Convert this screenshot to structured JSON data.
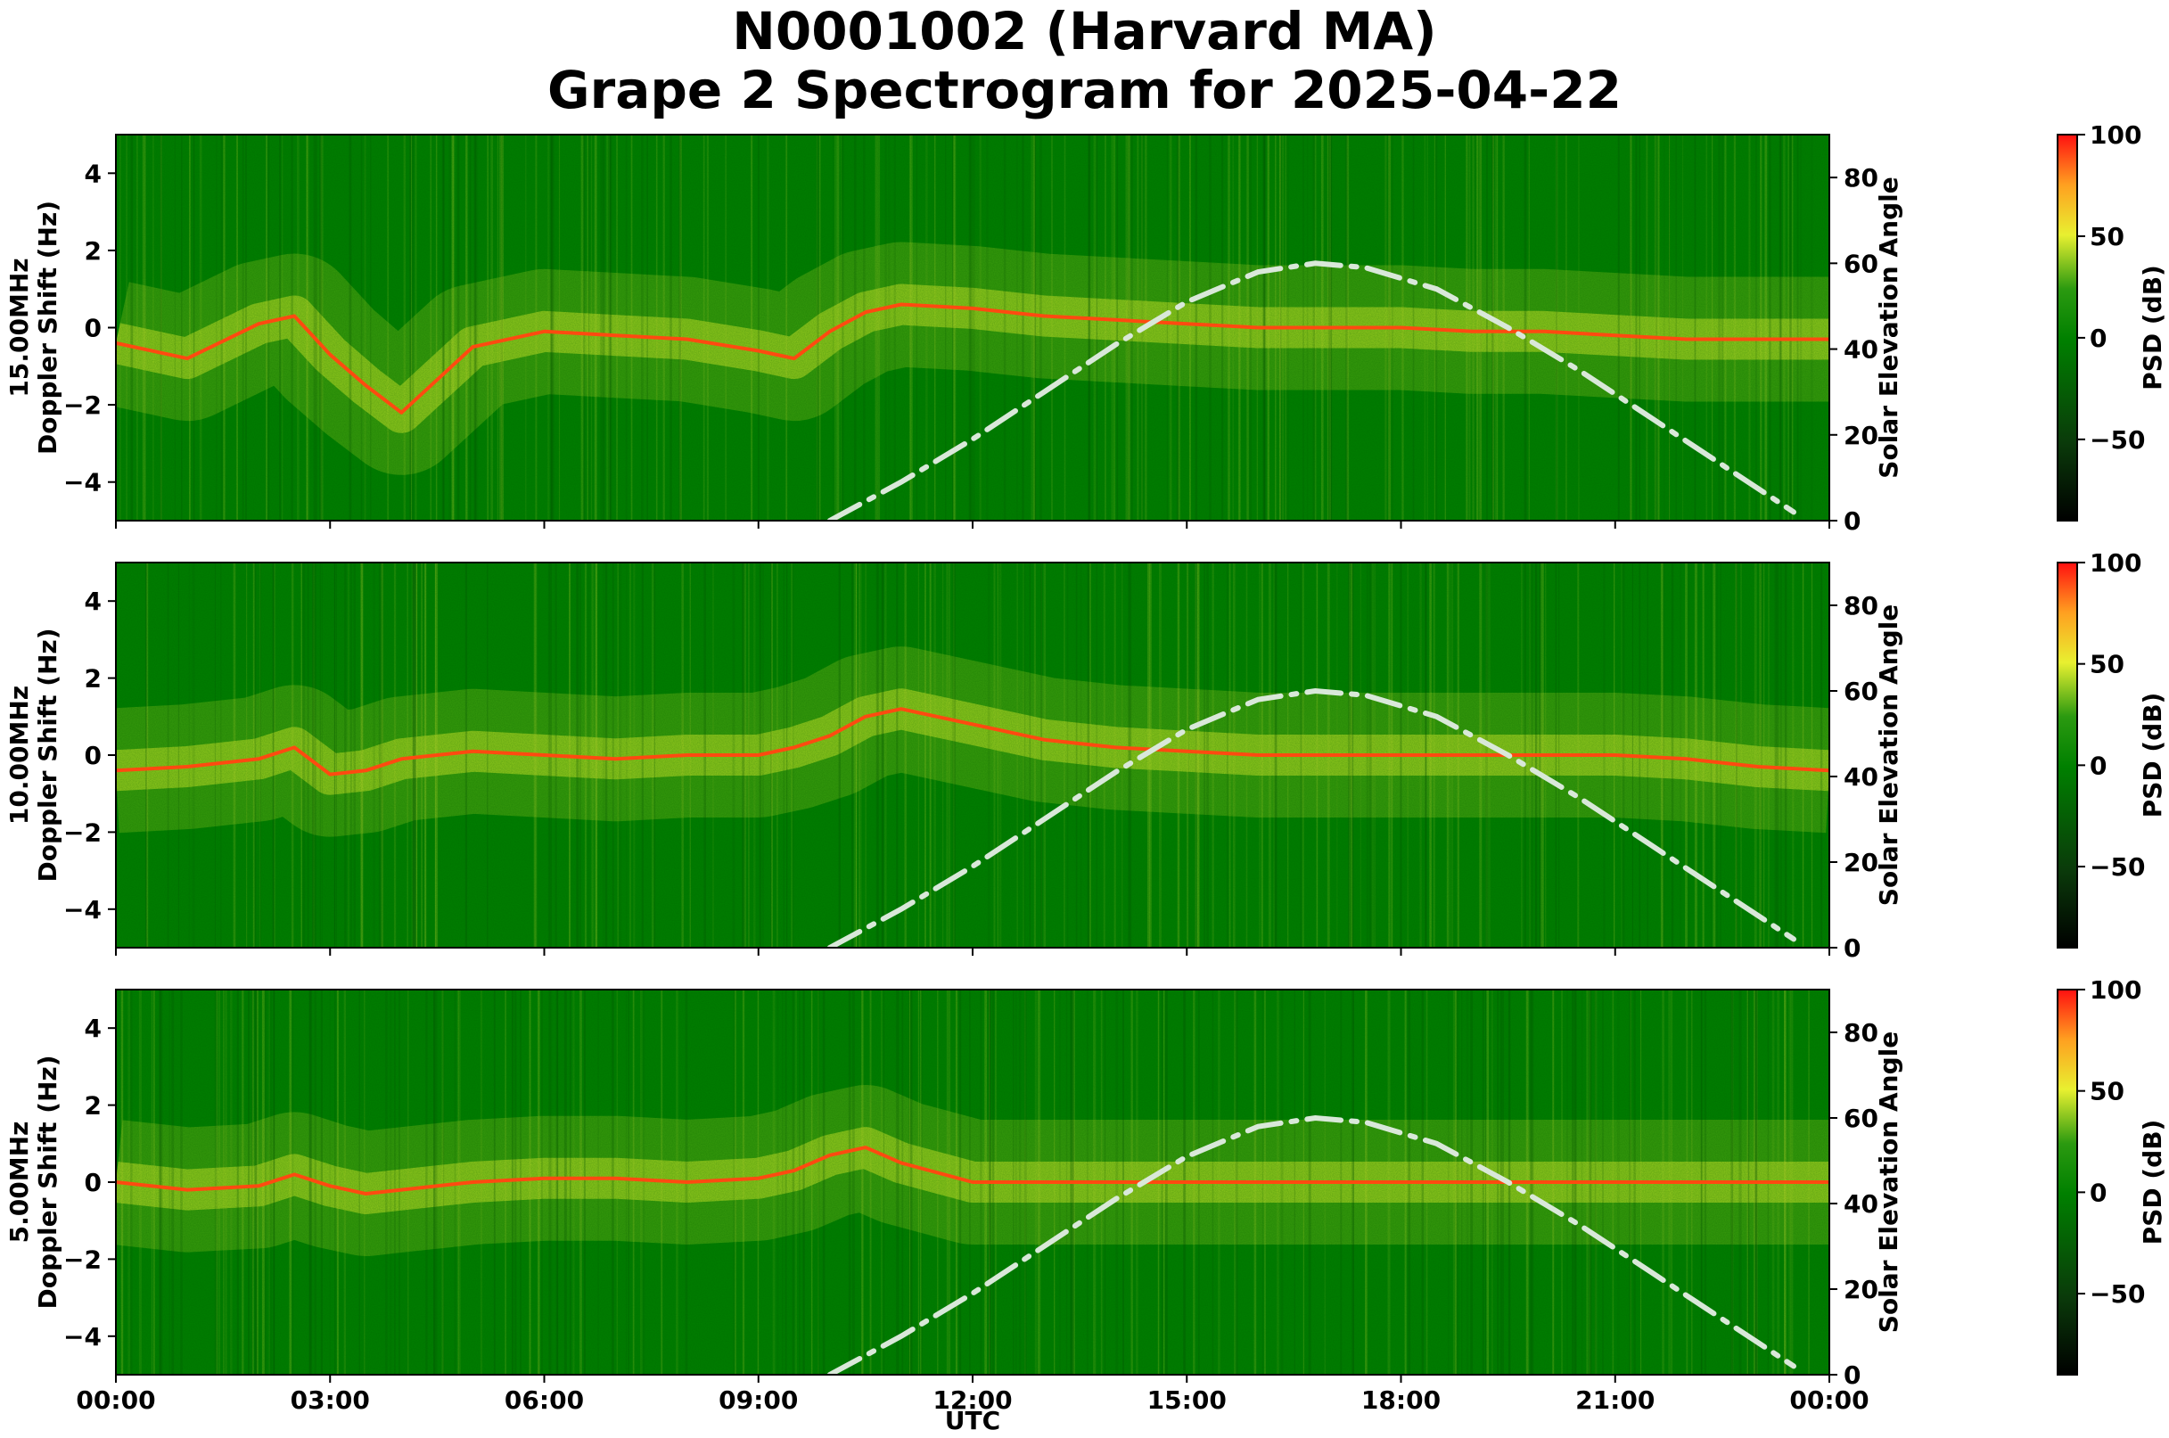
{
  "figure": {
    "title_line1": "N0001002 (Harvard MA)",
    "title_line2": "Grape 2 Spectrogram for 2025-04-22",
    "xlabel": "UTC",
    "x_tick_labels": [
      "00:00",
      "03:00",
      "06:00",
      "09:00",
      "12:00",
      "15:00",
      "18:00",
      "21:00",
      "00:00"
    ],
    "colors": {
      "background": "#008000",
      "noise_dark": "#005c00",
      "mid": "#d8ee2c",
      "high": "#ff4a10",
      "solar_curve": "#d9e8d9"
    }
  },
  "chart_data": [
    {
      "type": "heatmap",
      "freq_label": "15.00MHz",
      "ylabel": "Doppler Shift (Hz)",
      "ylim": [
        -5,
        5
      ],
      "y_ticks": [
        4,
        2,
        0,
        -2,
        -4
      ],
      "y_tick_labels": [
        "4",
        "2",
        "0",
        "−2",
        "−4"
      ],
      "y2label": "Solar Elevation Angle",
      "y2lim": [
        0,
        90
      ],
      "y2_ticks": [
        80,
        60,
        40,
        20,
        0
      ],
      "colorbar": {
        "label": "PSD (dB)",
        "range": [
          -90,
          100
        ],
        "ticks": [
          100,
          50,
          0,
          -50
        ],
        "tick_labels": [
          "100",
          "50",
          "0",
          "−50"
        ]
      },
      "doppler_trace": {
        "x_hours": [
          0,
          1,
          2,
          2.5,
          3,
          3.5,
          4,
          5,
          6,
          7,
          8,
          9,
          9.5,
          10,
          10.5,
          11,
          12,
          13,
          14,
          15,
          16,
          17,
          18,
          19,
          20,
          21,
          22,
          23,
          24
        ],
        "y_hz": [
          -0.4,
          -0.8,
          0.1,
          0.3,
          -0.7,
          -1.5,
          -2.2,
          -0.5,
          -0.1,
          -0.2,
          -0.3,
          -0.6,
          -0.8,
          -0.1,
          0.4,
          0.6,
          0.5,
          0.3,
          0.2,
          0.1,
          0.0,
          0.0,
          0.0,
          -0.1,
          -0.1,
          -0.2,
          -0.3,
          -0.3,
          -0.3
        ]
      }
    },
    {
      "type": "heatmap",
      "freq_label": "10.00MHz",
      "ylabel": "Doppler Shift (Hz)",
      "ylim": [
        -5,
        5
      ],
      "y_ticks": [
        4,
        2,
        0,
        -2,
        -4
      ],
      "y_tick_labels": [
        "4",
        "2",
        "0",
        "−2",
        "−4"
      ],
      "y2label": "Solar Elevation Angle",
      "y2lim": [
        0,
        90
      ],
      "y2_ticks": [
        80,
        60,
        40,
        20,
        0
      ],
      "colorbar": {
        "label": "PSD (dB)",
        "range": [
          -90,
          100
        ],
        "ticks": [
          100,
          50,
          0,
          -50
        ],
        "tick_labels": [
          "100",
          "50",
          "0",
          "−50"
        ]
      },
      "doppler_trace": {
        "x_hours": [
          0,
          1,
          2,
          2.5,
          3,
          3.5,
          4,
          5,
          6,
          7,
          8,
          9,
          9.5,
          10,
          10.5,
          11,
          12,
          13,
          14,
          15,
          16,
          17,
          18,
          19,
          20,
          21,
          22,
          23,
          24
        ],
        "y_hz": [
          -0.4,
          -0.3,
          -0.1,
          0.2,
          -0.5,
          -0.4,
          -0.1,
          0.1,
          0.0,
          -0.1,
          0.0,
          0.0,
          0.2,
          0.5,
          1.0,
          1.2,
          0.8,
          0.4,
          0.2,
          0.1,
          0.0,
          0.0,
          0.0,
          0.0,
          0.0,
          0.0,
          -0.1,
          -0.3,
          -0.4
        ]
      }
    },
    {
      "type": "heatmap",
      "freq_label": "5.00MHz",
      "ylabel": "Doppler Shift (Hz)",
      "ylim": [
        -5,
        5
      ],
      "y_ticks": [
        4,
        2,
        0,
        -2,
        -4
      ],
      "y_tick_labels": [
        "4",
        "2",
        "0",
        "−2",
        "−4"
      ],
      "y2label": "Solar Elevation Angle",
      "y2lim": [
        0,
        90
      ],
      "y2_ticks": [
        80,
        60,
        40,
        20,
        0
      ],
      "colorbar": {
        "label": "PSD (dB)",
        "range": [
          -90,
          100
        ],
        "ticks": [
          100,
          50,
          0,
          -50
        ],
        "tick_labels": [
          "100",
          "50",
          "0",
          "−50"
        ]
      },
      "doppler_trace": {
        "x_hours": [
          0,
          1,
          2,
          2.5,
          3,
          3.5,
          4,
          5,
          6,
          7,
          8,
          9,
          9.5,
          10,
          10.5,
          11,
          12,
          13,
          14,
          15,
          16,
          17,
          18,
          19,
          20,
          21,
          22,
          23,
          24
        ],
        "y_hz": [
          0.0,
          -0.2,
          -0.1,
          0.2,
          -0.1,
          -0.3,
          -0.2,
          0.0,
          0.1,
          0.1,
          0.0,
          0.1,
          0.3,
          0.7,
          0.9,
          0.5,
          0.0,
          0.0,
          0.0,
          0.0,
          0.0,
          0.0,
          0.0,
          0.0,
          0.0,
          0.0,
          0.0,
          0.0,
          0.0
        ]
      }
    }
  ],
  "solar_elevation": {
    "x_hours": [
      10.0,
      11.0,
      12.0,
      13.0,
      14.0,
      15.0,
      16.0,
      16.8,
      17.5,
      18.5,
      19.5,
      20.5,
      21.5,
      22.5,
      23.5
    ],
    "y_deg": [
      0,
      9,
      19,
      30,
      41,
      51,
      58,
      60,
      59,
      54,
      45,
      35,
      24,
      13,
      2
    ]
  }
}
